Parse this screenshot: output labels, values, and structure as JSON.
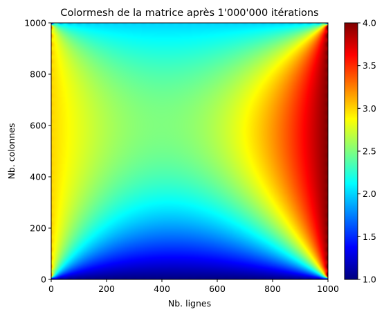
{
  "chart_data": {
    "type": "heatmap",
    "title": "Colormesh de la matrice après 1'000'000 itérations",
    "xlabel": "Nb. lignes",
    "ylabel": "Nb. colonnes",
    "xlim": [
      0,
      1000
    ],
    "ylim": [
      0,
      1000
    ],
    "x_ticks": [
      0,
      200,
      400,
      600,
      800,
      1000
    ],
    "y_ticks": [
      0,
      200,
      400,
      600,
      800,
      1000
    ],
    "colormap": "jet",
    "colorbar": {
      "range": [
        1.0,
        4.0
      ],
      "ticks": [
        "1.0",
        "1.5",
        "2.0",
        "2.5",
        "3.0",
        "3.5",
        "4.0"
      ]
    },
    "boundary_values": {
      "bottom_edge_y0": 1.0,
      "top_edge_y1000": 2.0,
      "left_edge_x0": 3.0,
      "right_edge_x1000": 4.0
    },
    "grid": false,
    "legend": "none"
  }
}
